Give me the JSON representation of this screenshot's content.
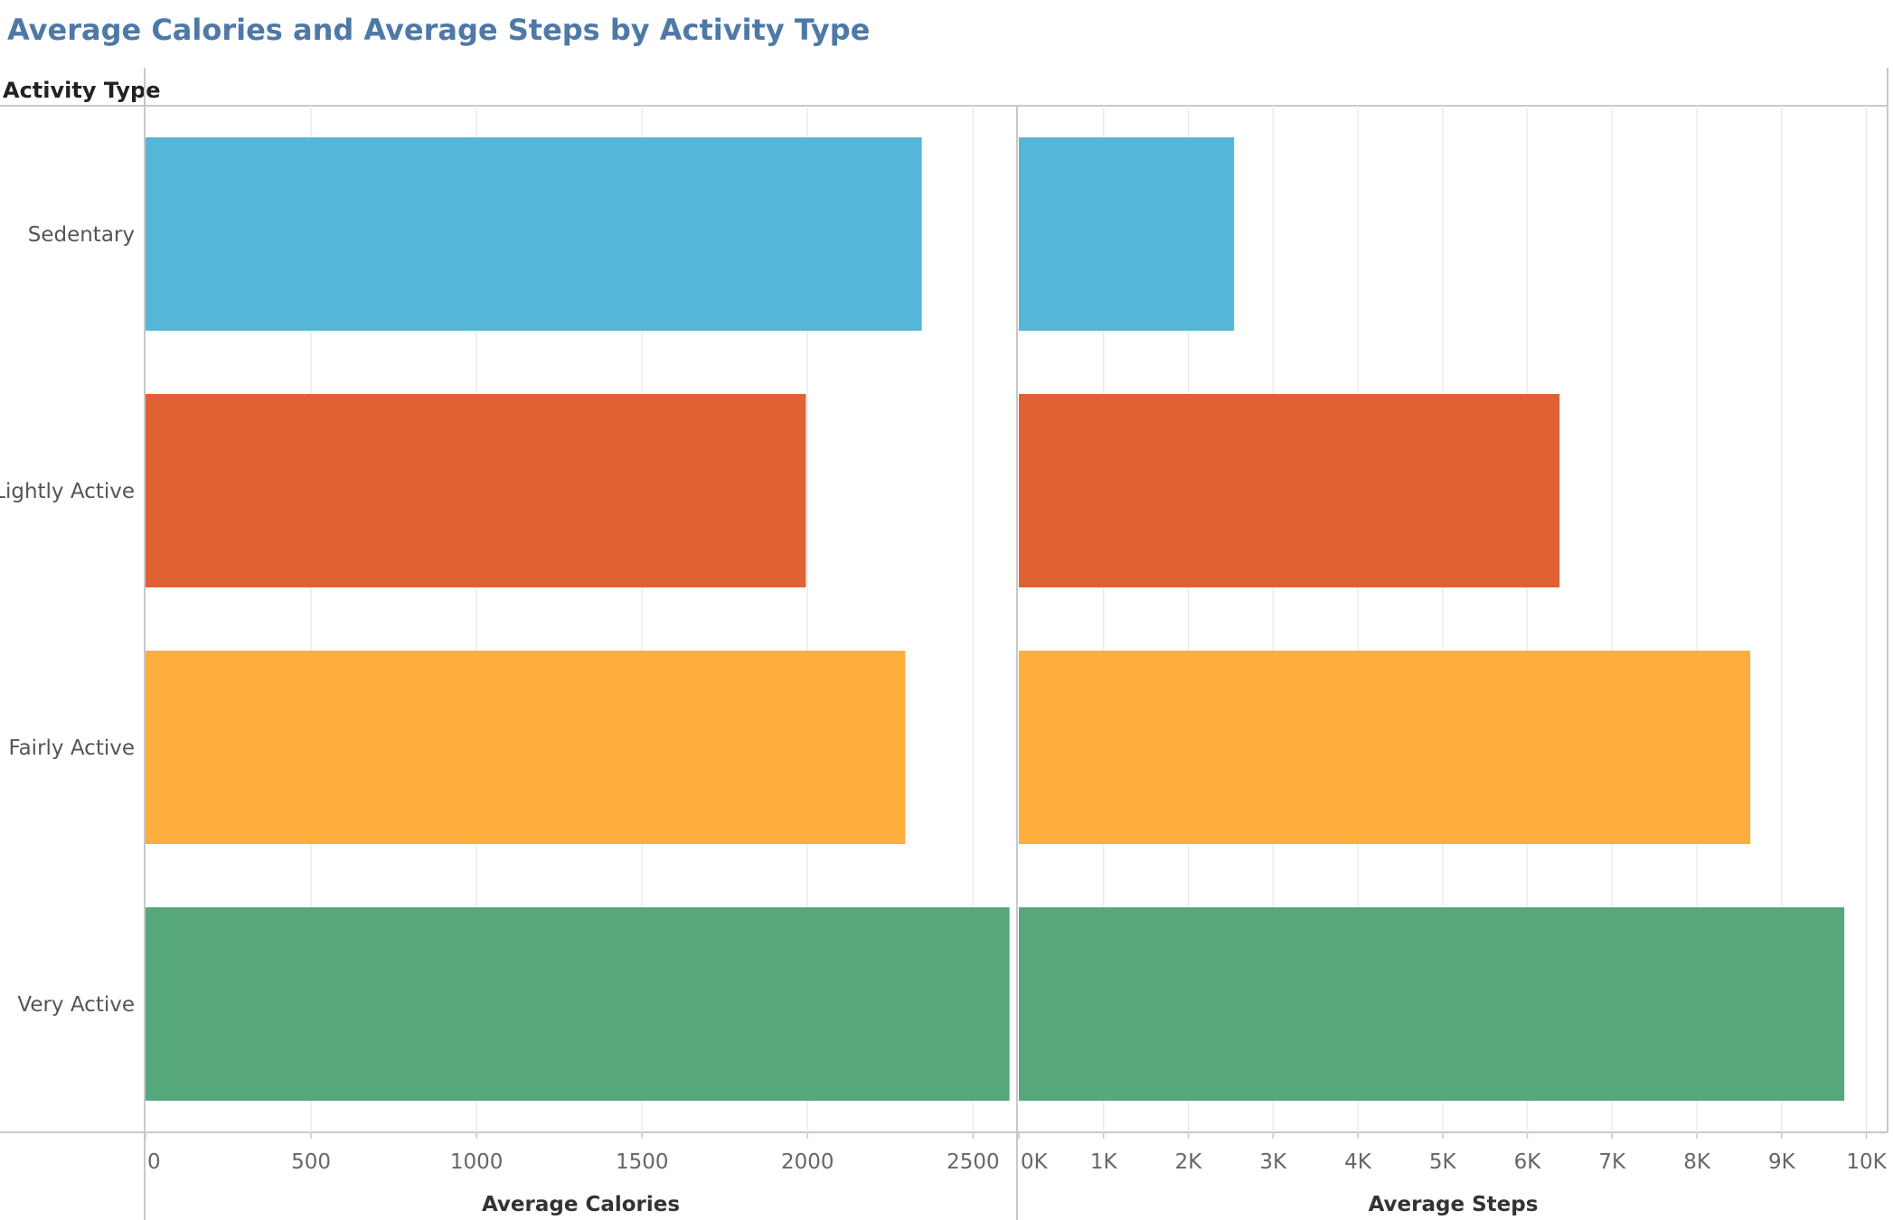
{
  "chart_data": {
    "type": "bar",
    "title": "Average Calories and Average Steps by Activity Type",
    "row_header": "Activity Type",
    "categories": [
      "Sedentary",
      "Lightly Active",
      "Fairly Active",
      "Very Active"
    ],
    "colors": [
      "#56b6d8",
      "#e06234",
      "#fdae3c",
      "#56a77c"
    ],
    "panels": [
      {
        "name": "Average Calories",
        "xlabel": "Average Calories",
        "values": [
          2345,
          1995,
          2295,
          2610
        ],
        "xlim": [
          0,
          2630
        ],
        "ticks": [
          0,
          500,
          1000,
          1500,
          2000,
          2500
        ],
        "tick_labels": [
          "0",
          "500",
          "1000",
          "1500",
          "2000",
          "2500"
        ]
      },
      {
        "name": "Average Steps",
        "xlabel": "Average Steps",
        "values": [
          2540,
          6380,
          8630,
          9740
        ],
        "xlim": [
          0,
          10250
        ],
        "ticks": [
          0,
          1000,
          2000,
          3000,
          4000,
          5000,
          6000,
          7000,
          8000,
          9000,
          10000
        ],
        "tick_labels": [
          "0K",
          "1K",
          "2K",
          "3K",
          "4K",
          "5K",
          "6K",
          "7K",
          "8K",
          "9K",
          "10K"
        ]
      }
    ],
    "grid": true,
    "orientation": "horizontal"
  }
}
